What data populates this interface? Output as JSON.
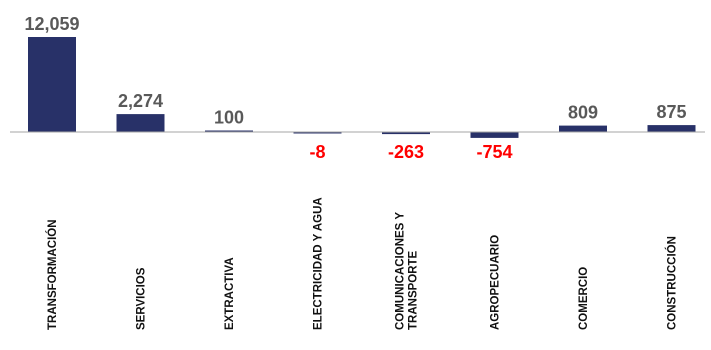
{
  "chart_data": {
    "type": "bar",
    "title": "",
    "xlabel": "",
    "ylabel": "",
    "categories": [
      [
        "TRANSFORMACIÓN"
      ],
      [
        "SERVICIOS"
      ],
      [
        "EXTRACTIVA"
      ],
      [
        "ELECTRICIDAD Y AGUA"
      ],
      [
        "COMUNICACIONES Y",
        "TRANSPORTE"
      ],
      [
        "AGROPECUARIO"
      ],
      [
        "COMERCIO"
      ],
      [
        "CONSTRUCCIÓN"
      ]
    ],
    "values": [
      12059,
      2274,
      100,
      -8,
      -263,
      -754,
      809,
      875
    ],
    "value_labels": [
      "12,059",
      "2,274",
      "100",
      "-8",
      "-263",
      "-754",
      "809",
      "875"
    ],
    "ylim": [
      -1000,
      12059
    ],
    "grid": false,
    "colors": {
      "bar": "#283168",
      "positive_label": "#595959",
      "negative_label": "#ff0000",
      "baseline": "#a6a6a6"
    }
  }
}
